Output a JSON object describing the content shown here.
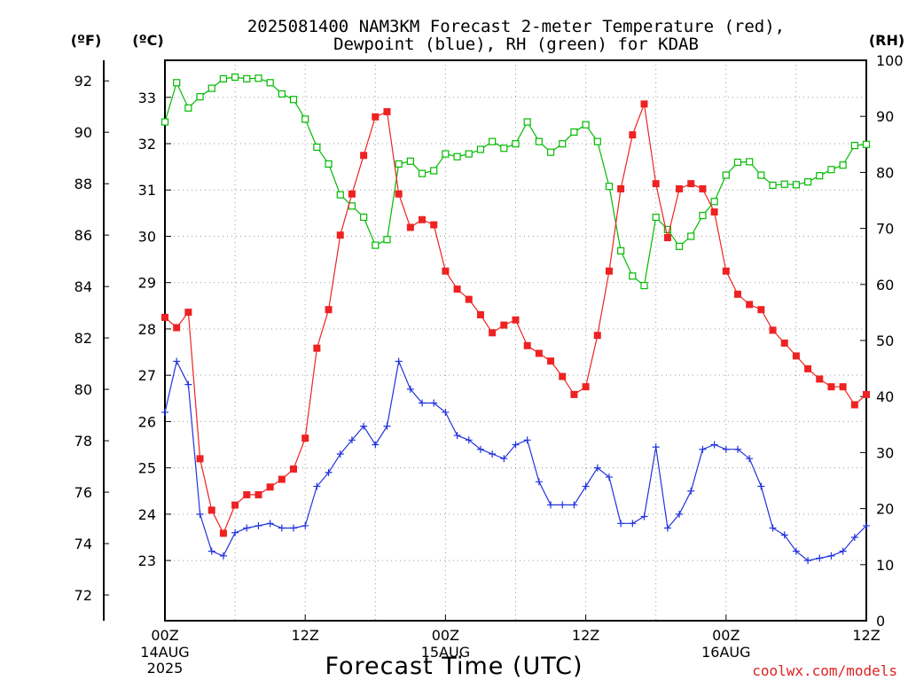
{
  "chart_data": {
    "type": "line",
    "title_line1": "2025081400 NAM3KM Forecast 2-meter Temperature (red),",
    "title_line2": "Dewpoint (blue), RH (green) for KDAB",
    "xlabel": "Forecast Time (UTC)",
    "credit": "coolwx.com/models",
    "unit_left_f": "(ºF)",
    "unit_left_c": "(ºC)",
    "unit_right": "(RH)",
    "x_range_hours": [
      0,
      60
    ],
    "x_ticks": [
      {
        "hour": 0,
        "label": "00Z",
        "sub": "14AUG",
        "sub2": "2025"
      },
      {
        "hour": 12,
        "label": "12Z",
        "sub": "",
        "sub2": ""
      },
      {
        "hour": 24,
        "label": "00Z",
        "sub": "15AUG",
        "sub2": ""
      },
      {
        "hour": 36,
        "label": "12Z",
        "sub": "",
        "sub2": ""
      },
      {
        "hour": 48,
        "label": "00Z",
        "sub": "16AUG",
        "sub2": ""
      },
      {
        "hour": 60,
        "label": "12Z",
        "sub": "",
        "sub2": ""
      }
    ],
    "f_axis": {
      "range": [
        71,
        92.8
      ],
      "ticks": [
        "72",
        "74",
        "76",
        "78",
        "80",
        "82",
        "84",
        "86",
        "88",
        "90",
        "92"
      ]
    },
    "c_axis": {
      "range": [
        21.7,
        33.8
      ],
      "ticks": [
        "23",
        "24",
        "25",
        "26",
        "27",
        "28",
        "29",
        "30",
        "31",
        "32",
        "33"
      ]
    },
    "rh_axis": {
      "range": [
        0,
        100
      ],
      "ticks": [
        "0",
        "10",
        "20",
        "30",
        "40",
        "50",
        "60",
        "70",
        "80",
        "90",
        "100"
      ]
    },
    "grid": true,
    "colors": {
      "temperature": "#ee2222",
      "dewpoint": "#2233dd",
      "rh": "#00bb00",
      "credit": "#dd2222"
    },
    "series": [
      {
        "key": "temperature",
        "axis": "F",
        "values": [
          [
            0,
            82.8
          ],
          [
            1,
            82.4
          ],
          [
            2,
            83.0
          ],
          [
            3,
            77.3
          ],
          [
            4,
            75.3
          ],
          [
            5,
            74.4
          ],
          [
            6,
            75.5
          ],
          [
            7,
            75.9
          ],
          [
            8,
            75.9
          ],
          [
            9,
            76.2
          ],
          [
            10,
            76.5
          ],
          [
            11,
            76.9
          ],
          [
            12,
            78.1
          ],
          [
            13,
            81.6
          ],
          [
            14,
            83.1
          ],
          [
            15,
            86.0
          ],
          [
            16,
            87.6
          ],
          [
            17,
            89.1
          ],
          [
            18,
            90.6
          ],
          [
            19,
            90.8
          ],
          [
            20,
            87.6
          ],
          [
            21,
            86.3
          ],
          [
            22,
            86.6
          ],
          [
            23,
            86.4
          ],
          [
            24,
            84.6
          ],
          [
            25,
            83.9
          ],
          [
            26,
            83.5
          ],
          [
            27,
            82.9
          ],
          [
            28,
            82.2
          ],
          [
            29,
            82.5
          ],
          [
            30,
            82.7
          ],
          [
            31,
            81.7
          ],
          [
            32,
            81.4
          ],
          [
            33,
            81.1
          ],
          [
            34,
            80.5
          ],
          [
            35,
            79.8
          ],
          [
            36,
            80.1
          ],
          [
            37,
            82.1
          ],
          [
            38,
            84.6
          ],
          [
            39,
            87.8
          ],
          [
            40,
            89.9
          ],
          [
            41,
            91.1
          ],
          [
            42,
            88.0
          ],
          [
            43,
            85.9
          ],
          [
            44,
            87.8
          ],
          [
            45,
            88.0
          ],
          [
            46,
            87.8
          ],
          [
            47,
            86.9
          ],
          [
            48,
            84.6
          ],
          [
            49,
            83.7
          ],
          [
            50,
            83.3
          ],
          [
            51,
            83.1
          ],
          [
            52,
            82.3
          ],
          [
            53,
            81.8
          ],
          [
            54,
            81.3
          ],
          [
            55,
            80.8
          ],
          [
            56,
            80.4
          ],
          [
            57,
            80.1
          ],
          [
            58,
            80.1
          ],
          [
            59,
            79.4
          ],
          [
            60,
            79.8
          ]
        ]
      },
      {
        "key": "dewpoint",
        "axis": "C",
        "values": [
          [
            0,
            26.2
          ],
          [
            1,
            27.3
          ],
          [
            2,
            26.8
          ],
          [
            3,
            24.0
          ],
          [
            4,
            23.2
          ],
          [
            5,
            23.1
          ],
          [
            6,
            23.6
          ],
          [
            7,
            23.7
          ],
          [
            8,
            23.75
          ],
          [
            9,
            23.8
          ],
          [
            10,
            23.7
          ],
          [
            11,
            23.7
          ],
          [
            12,
            23.75
          ],
          [
            13,
            24.6
          ],
          [
            14,
            24.9
          ],
          [
            15,
            25.3
          ],
          [
            16,
            25.6
          ],
          [
            17,
            25.9
          ],
          [
            18,
            25.5
          ],
          [
            19,
            25.9
          ],
          [
            20,
            27.3
          ],
          [
            21,
            26.7
          ],
          [
            22,
            26.4
          ],
          [
            23,
            26.4
          ],
          [
            24,
            26.2
          ],
          [
            25,
            25.7
          ],
          [
            26,
            25.6
          ],
          [
            27,
            25.4
          ],
          [
            28,
            25.3
          ],
          [
            29,
            25.2
          ],
          [
            30,
            25.5
          ],
          [
            31,
            25.6
          ],
          [
            32,
            24.7
          ],
          [
            33,
            24.2
          ],
          [
            34,
            24.2
          ],
          [
            35,
            24.2
          ],
          [
            36,
            24.6
          ],
          [
            37,
            25.0
          ],
          [
            38,
            24.8
          ],
          [
            39,
            23.8
          ],
          [
            40,
            23.8
          ],
          [
            41,
            23.95
          ],
          [
            42,
            25.45
          ],
          [
            43,
            23.7
          ],
          [
            44,
            24.0
          ],
          [
            45,
            24.5
          ],
          [
            46,
            25.4
          ],
          [
            47,
            25.5
          ],
          [
            48,
            25.4
          ],
          [
            49,
            25.4
          ],
          [
            50,
            25.2
          ],
          [
            51,
            24.6
          ],
          [
            52,
            23.7
          ],
          [
            53,
            23.55
          ],
          [
            54,
            23.2
          ],
          [
            55,
            23.0
          ],
          [
            56,
            23.05
          ],
          [
            57,
            23.1
          ],
          [
            58,
            23.2
          ],
          [
            59,
            23.5
          ],
          [
            60,
            23.75
          ]
        ]
      },
      {
        "key": "rh",
        "axis": "RH",
        "values": [
          [
            0,
            89
          ],
          [
            1,
            96
          ],
          [
            2,
            91.5
          ],
          [
            3,
            93.5
          ],
          [
            4,
            95
          ],
          [
            5,
            96.7
          ],
          [
            6,
            97
          ],
          [
            7,
            96.7
          ],
          [
            8,
            96.8
          ],
          [
            9,
            96
          ],
          [
            10,
            94
          ],
          [
            11,
            93
          ],
          [
            12,
            89.5
          ],
          [
            13,
            84.5
          ],
          [
            14,
            81.5
          ],
          [
            15,
            76
          ],
          [
            16,
            74
          ],
          [
            17,
            72
          ],
          [
            18,
            67
          ],
          [
            19,
            68
          ],
          [
            20,
            81.5
          ],
          [
            21,
            82
          ],
          [
            22,
            79.8
          ],
          [
            23,
            80.3
          ],
          [
            24,
            83.3
          ],
          [
            25,
            82.8
          ],
          [
            26,
            83.3
          ],
          [
            27,
            84.1
          ],
          [
            28,
            85.5
          ],
          [
            29,
            84.3
          ],
          [
            30,
            85.1
          ],
          [
            31,
            89
          ],
          [
            32,
            85.5
          ],
          [
            33,
            83.6
          ],
          [
            34,
            85.1
          ],
          [
            35,
            87.2
          ],
          [
            36,
            88.5
          ],
          [
            37,
            85.5
          ],
          [
            38,
            77.5
          ],
          [
            39,
            66
          ],
          [
            40,
            61.5
          ],
          [
            41,
            59.8
          ],
          [
            42,
            72
          ],
          [
            43,
            69.8
          ],
          [
            44,
            66.8
          ],
          [
            45,
            68.6
          ],
          [
            46,
            72.3
          ],
          [
            47,
            74.8
          ],
          [
            48,
            79.5
          ],
          [
            49,
            81.8
          ],
          [
            50,
            81.9
          ],
          [
            51,
            79.5
          ],
          [
            52,
            77.7
          ],
          [
            53,
            77.9
          ],
          [
            54,
            77.8
          ],
          [
            55,
            78.3
          ],
          [
            56,
            79.4
          ],
          [
            57,
            80.5
          ],
          [
            58,
            81.3
          ],
          [
            59,
            84.8
          ],
          [
            60,
            85
          ]
        ]
      }
    ]
  }
}
